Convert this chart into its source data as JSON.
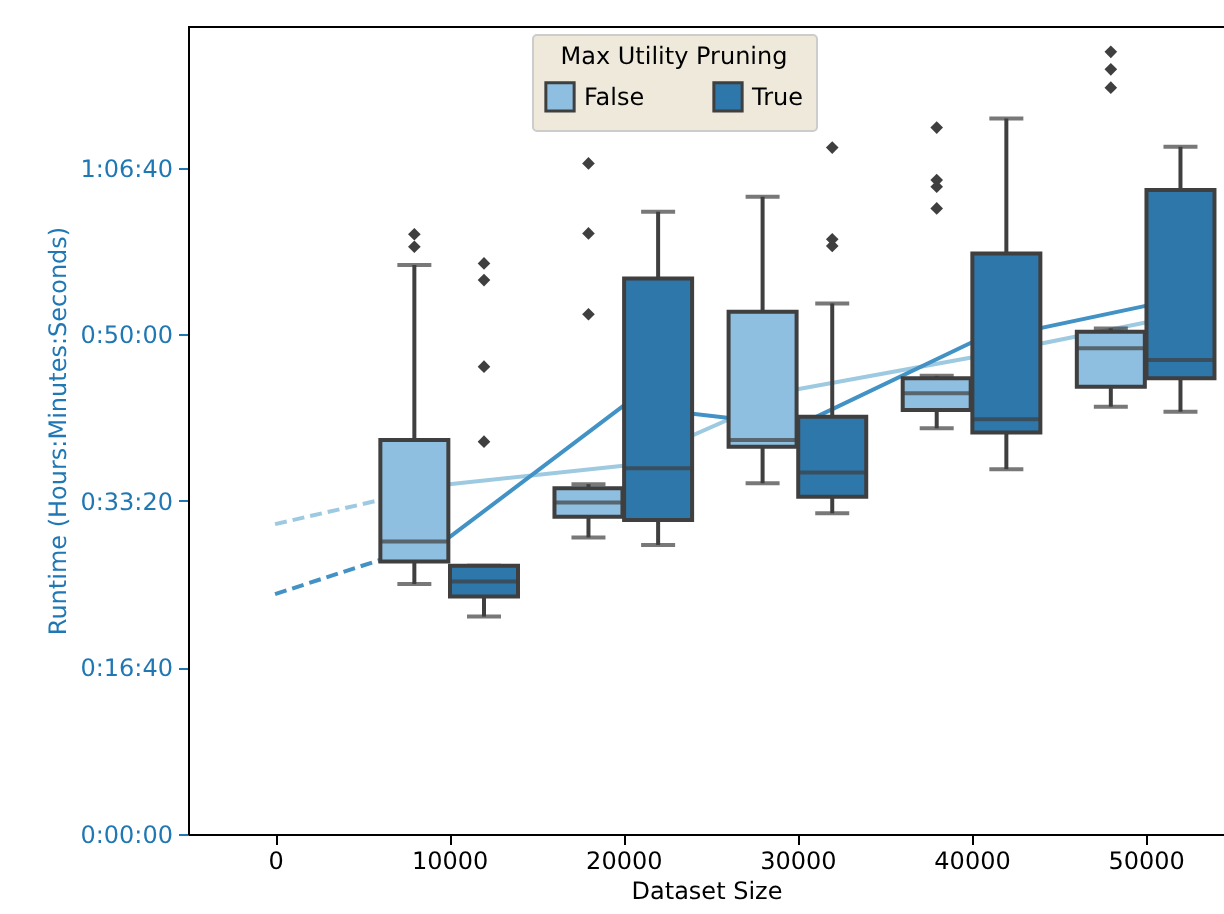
{
  "chart_data": {
    "type": "box",
    "xlabel": "Dataset Size",
    "ylabel": "Runtime (Hours:Minutes:Seconds)",
    "legend_title": "Max Utility Pruning",
    "legend": "top",
    "xlim": [
      -5000,
      54500
    ],
    "ylim": [
      0,
      4850
    ],
    "xticks": [
      0,
      10000,
      20000,
      30000,
      40000,
      50000
    ],
    "yticks": [
      {
        "value": 0,
        "label": "0:00:00"
      },
      {
        "value": 1000,
        "label": "0:16:40"
      },
      {
        "value": 2000,
        "label": "0:33:20"
      },
      {
        "value": 3000,
        "label": "0:50:00"
      },
      {
        "value": 4000,
        "label": "1:06:40"
      }
    ],
    "series": [
      {
        "type": "line",
        "color": "#9ecae1",
        "line_style": "dashed",
        "x": [
          0,
          10000
        ],
        "values": [
          1860,
          2100
        ]
      },
      {
        "type": "line",
        "color": "#9ecae1",
        "line_style": "solid",
        "x": [
          10000,
          20000,
          30000,
          40000,
          50000
        ],
        "values": [
          2100,
          2210,
          2670,
          2860,
          3070
        ]
      },
      {
        "type": "line",
        "color": "#4292c6",
        "line_style": "dashed",
        "x": [
          0,
          10000
        ],
        "values": [
          1440,
          1780
        ]
      },
      {
        "type": "line",
        "color": "#4292c6",
        "line_style": "solid",
        "x": [
          10000,
          20000,
          30000,
          40000,
          50000
        ],
        "values": [
          1780,
          2570,
          2450,
          2950,
          3170
        ]
      },
      {
        "name": "False",
        "color": "#8fbfe0",
        "marker": "diamond",
        "x": [
          8000,
          18000,
          28000,
          38000,
          48000
        ],
        "boxes": [
          {
            "low": 1500,
            "q1": 1635,
            "median": 1755,
            "q3": 2365,
            "high": 3415,
            "outliers": [
              3525,
              3600
            ]
          },
          {
            "low": 1780,
            "q1": 1905,
            "median": 1990,
            "q3": 2075,
            "high": 2100,
            "outliers": [
              3120,
              3605,
              4025
            ]
          },
          {
            "low": 2105,
            "q1": 2325,
            "median": 2365,
            "q3": 3135,
            "high": 3825
          },
          {
            "low": 2435,
            "q1": 2545,
            "median": 2645,
            "q3": 2735,
            "high": 2750,
            "outliers": [
              3755,
              3885,
              3925,
              4240
            ]
          },
          {
            "low": 2565,
            "q1": 2685,
            "median": 2915,
            "q3": 3015,
            "high": 3035,
            "outliers": [
              4480,
              4590,
              4695
            ]
          }
        ]
      },
      {
        "name": "True",
        "color": "#2e77aa",
        "marker": "diamond",
        "x": [
          12000,
          22000,
          32000,
          42000,
          52000
        ],
        "boxes": [
          {
            "low": 1305,
            "q1": 1425,
            "median": 1515,
            "q3": 1610,
            "high": 1610,
            "outliers": [
              2355,
              2805,
              3325,
              3425
            ]
          },
          {
            "low": 1735,
            "q1": 1885,
            "median": 2195,
            "q3": 3335,
            "high": 3735
          },
          {
            "low": 1925,
            "q1": 2025,
            "median": 2170,
            "q3": 2505,
            "high": 3185,
            "outliers": [
              3530,
              3570,
              4120
            ]
          },
          {
            "low": 2190,
            "q1": 2410,
            "median": 2490,
            "q3": 3485,
            "high": 4295
          },
          {
            "low": 2535,
            "q1": 2735,
            "median": 2845,
            "q3": 3865,
            "high": 4125
          }
        ]
      }
    ]
  }
}
